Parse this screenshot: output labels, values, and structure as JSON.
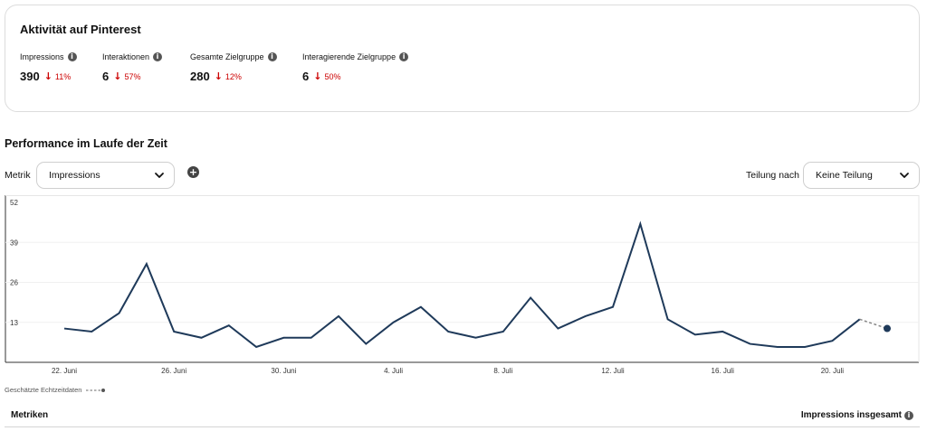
{
  "activity": {
    "title": "Aktivität auf Pinterest",
    "metrics": [
      {
        "label": "Impressions",
        "value": "390",
        "delta": "11%"
      },
      {
        "label": "Interaktionen",
        "value": "6",
        "delta": "57%"
      },
      {
        "label": "Gesamte Zielgruppe",
        "value": "280",
        "delta": "12%"
      },
      {
        "label": "Interagierende Zielgruppe",
        "value": "6",
        "delta": "50%"
      }
    ]
  },
  "performance": {
    "title": "Performance im Laufe der Zeit",
    "metric_label": "Metrik",
    "metric_selected": "Impressions",
    "split_label": "Teilung nach",
    "split_selected": "Keine Teilung",
    "realtime_legend": "Geschätzte Echtzeitdaten"
  },
  "chart_data": {
    "type": "line",
    "ylim": [
      0,
      52
    ],
    "yticks": [
      13,
      26,
      39,
      52
    ],
    "x_tick_labels": [
      "22. Juni",
      "26. Juni",
      "30. Juni",
      "4. Juli",
      "8. Juli",
      "12. Juli",
      "16. Juli",
      "20. Juli"
    ],
    "x": [
      "22. Juni",
      "23. Juni",
      "24. Juni",
      "25. Juni",
      "26. Juni",
      "27. Juni",
      "28. Juni",
      "29. Juni",
      "30. Juni",
      "1. Juli",
      "2. Juli",
      "3. Juli",
      "4. Juli",
      "5. Juli",
      "6. Juli",
      "7. Juli",
      "8. Juli",
      "9. Juli",
      "10. Juli",
      "11. Juli",
      "12. Juli",
      "13. Juli",
      "14. Juli",
      "15. Juli",
      "16. Juli",
      "17. Juli",
      "18. Juli",
      "19. Juli",
      "20. Juli",
      "21. Juli",
      "22. Juli"
    ],
    "series": [
      {
        "values": [
          11,
          10,
          16,
          32,
          10,
          8,
          12,
          5,
          8,
          8,
          15,
          6,
          13,
          18,
          10,
          8,
          10,
          21,
          11,
          15,
          18,
          45,
          14,
          9,
          10,
          6,
          5,
          5,
          7,
          14,
          11
        ],
        "color": "#1f3a5a",
        "estimated_from_index": 29
      }
    ],
    "grid": true,
    "legend": "none"
  },
  "table": {
    "left_header": "Metriken",
    "right_header": "Impressions insgesamt"
  }
}
